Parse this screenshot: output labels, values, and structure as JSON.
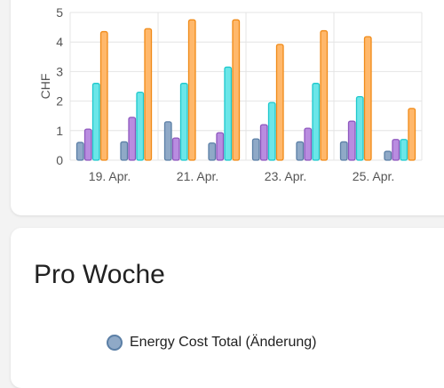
{
  "chart_data": {
    "type": "bar",
    "ylabel": "CHF",
    "yticks": [
      "0",
      "1",
      "2",
      "3",
      "4",
      "5"
    ],
    "ylim": [
      0,
      5
    ],
    "xtick_labels": [
      "19. Apr.",
      "21. Apr.",
      "23. Apr.",
      "25. Apr."
    ],
    "grid": true,
    "series": [
      {
        "color": "#8fa9c7",
        "stroke": "#5b7fa6",
        "values": [
          0.6,
          0.62,
          1.3,
          0.58,
          0.72,
          0.62,
          0.62,
          0.3
        ]
      },
      {
        "color": "#b98ce0",
        "stroke": "#8e57be",
        "values": [
          1.05,
          1.45,
          0.75,
          0.93,
          1.2,
          1.08,
          1.32,
          0.7
        ]
      },
      {
        "color": "#6be6e8",
        "stroke": "#1ec8cc",
        "values": [
          2.6,
          2.3,
          2.6,
          3.15,
          1.95,
          2.6,
          2.15,
          0.7
        ]
      },
      {
        "color": "#ffb86b",
        "stroke": "#f08a17",
        "values": [
          4.35,
          4.45,
          4.75,
          4.75,
          3.92,
          4.38,
          4.18,
          1.75
        ]
      }
    ]
  },
  "pro_woche": {
    "title": "Pro Woche",
    "legend_label": "Energy Cost Total (Änderung)",
    "legend_color": "#8fa9c7"
  }
}
